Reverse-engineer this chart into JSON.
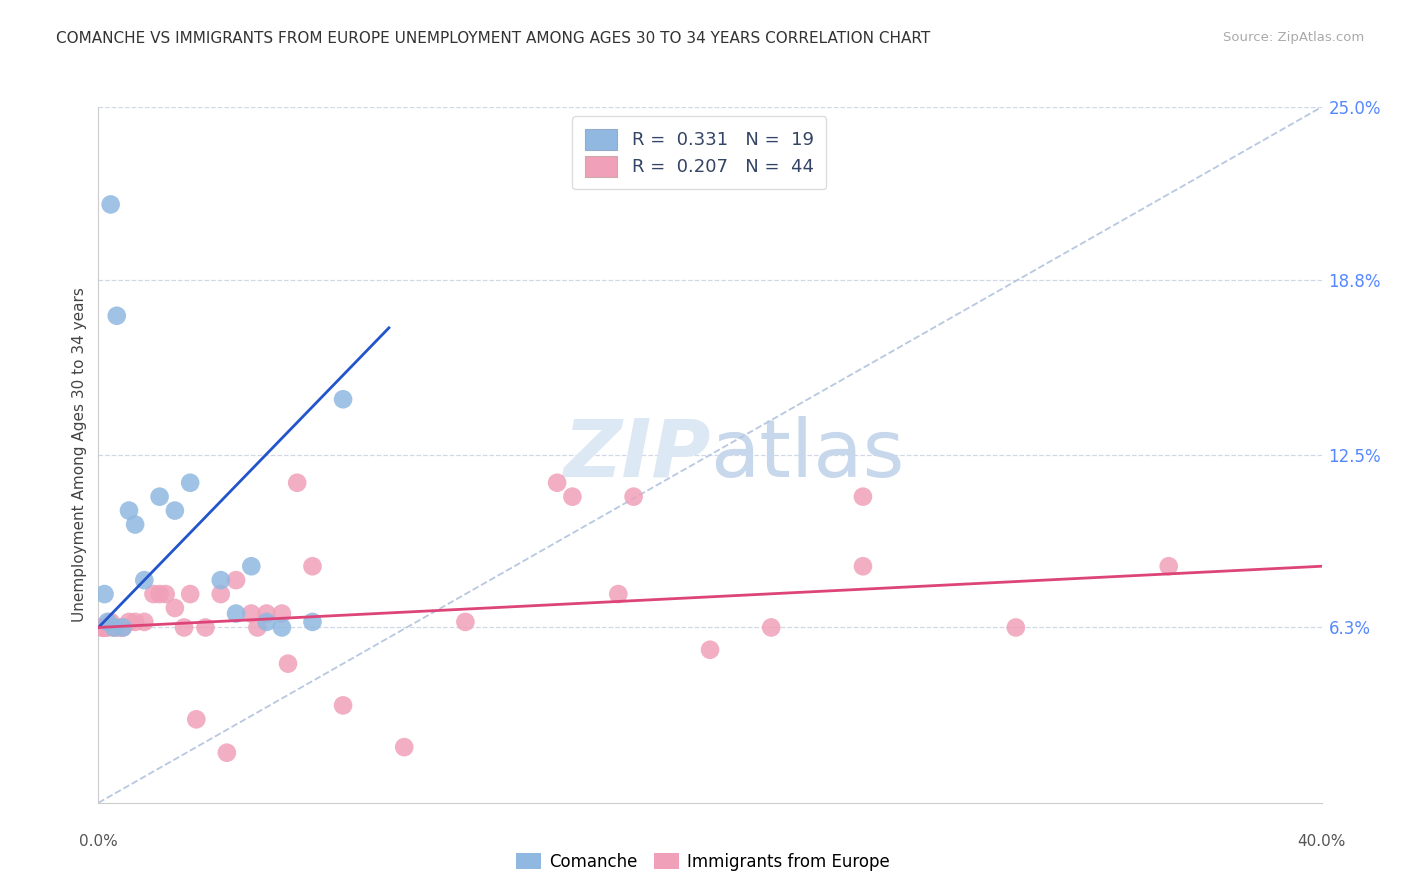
{
  "title": "COMANCHE VS IMMIGRANTS FROM EUROPE UNEMPLOYMENT AMONG AGES 30 TO 34 YEARS CORRELATION CHART",
  "source": "Source: ZipAtlas.com",
  "ylabel": "Unemployment Among Ages 30 to 34 years",
  "xmin": 0.0,
  "xmax": 40.0,
  "ymin": 0.0,
  "ymax": 25.0,
  "yticks": [
    6.3,
    12.5,
    18.8,
    25.0
  ],
  "ytick_labels": [
    "6.3%",
    "12.5%",
    "18.8%",
    "25.0%"
  ],
  "grid_color": "#d0d8e8",
  "background_color": "#ffffff",
  "watermark_zip": "ZIP",
  "watermark_atlas": "atlas",
  "comanche_color": "#90b8e0",
  "immigrants_color": "#f0a0b8",
  "regression_line_comanche_color": "#2255cc",
  "regression_line_immigrants_color": "#dd4477",
  "dashed_line_color": "#b8c8e0",
  "comanche_x": [
    0.3,
    0.5,
    0.8,
    1.0,
    1.2,
    1.5,
    2.0,
    2.5,
    3.0,
    4.0,
    4.5,
    5.0,
    5.5,
    6.0,
    7.0,
    8.0,
    0.2,
    0.4,
    0.6
  ],
  "comanche_y": [
    6.5,
    6.3,
    6.3,
    10.5,
    10.0,
    8.0,
    11.0,
    10.5,
    11.5,
    8.0,
    6.8,
    8.5,
    6.5,
    6.3,
    6.5,
    14.5,
    7.5,
    21.5,
    17.5
  ],
  "immigrants_x": [
    0.1,
    0.15,
    0.2,
    0.25,
    0.3,
    0.4,
    0.5,
    0.6,
    0.7,
    0.8,
    1.0,
    1.2,
    1.5,
    2.0,
    2.5,
    3.0,
    3.5,
    4.0,
    4.5,
    5.0,
    5.5,
    6.0,
    7.0,
    8.0,
    10.0,
    12.0,
    15.0,
    17.0,
    20.0,
    22.0,
    25.0,
    30.0,
    35.0,
    1.8,
    2.2,
    2.8,
    6.5,
    15.5,
    17.5,
    25.0,
    3.2,
    4.2,
    5.2,
    6.2
  ],
  "immigrants_y": [
    6.3,
    6.3,
    6.3,
    6.3,
    6.3,
    6.5,
    6.3,
    6.3,
    6.3,
    6.3,
    6.5,
    6.5,
    6.5,
    7.5,
    7.0,
    7.5,
    6.3,
    7.5,
    8.0,
    6.8,
    6.8,
    6.8,
    8.5,
    3.5,
    2.0,
    6.5,
    11.5,
    7.5,
    5.5,
    6.3,
    8.5,
    6.3,
    8.5,
    7.5,
    7.5,
    6.3,
    11.5,
    11.0,
    11.0,
    11.0,
    3.0,
    1.8,
    6.3,
    5.0
  ]
}
